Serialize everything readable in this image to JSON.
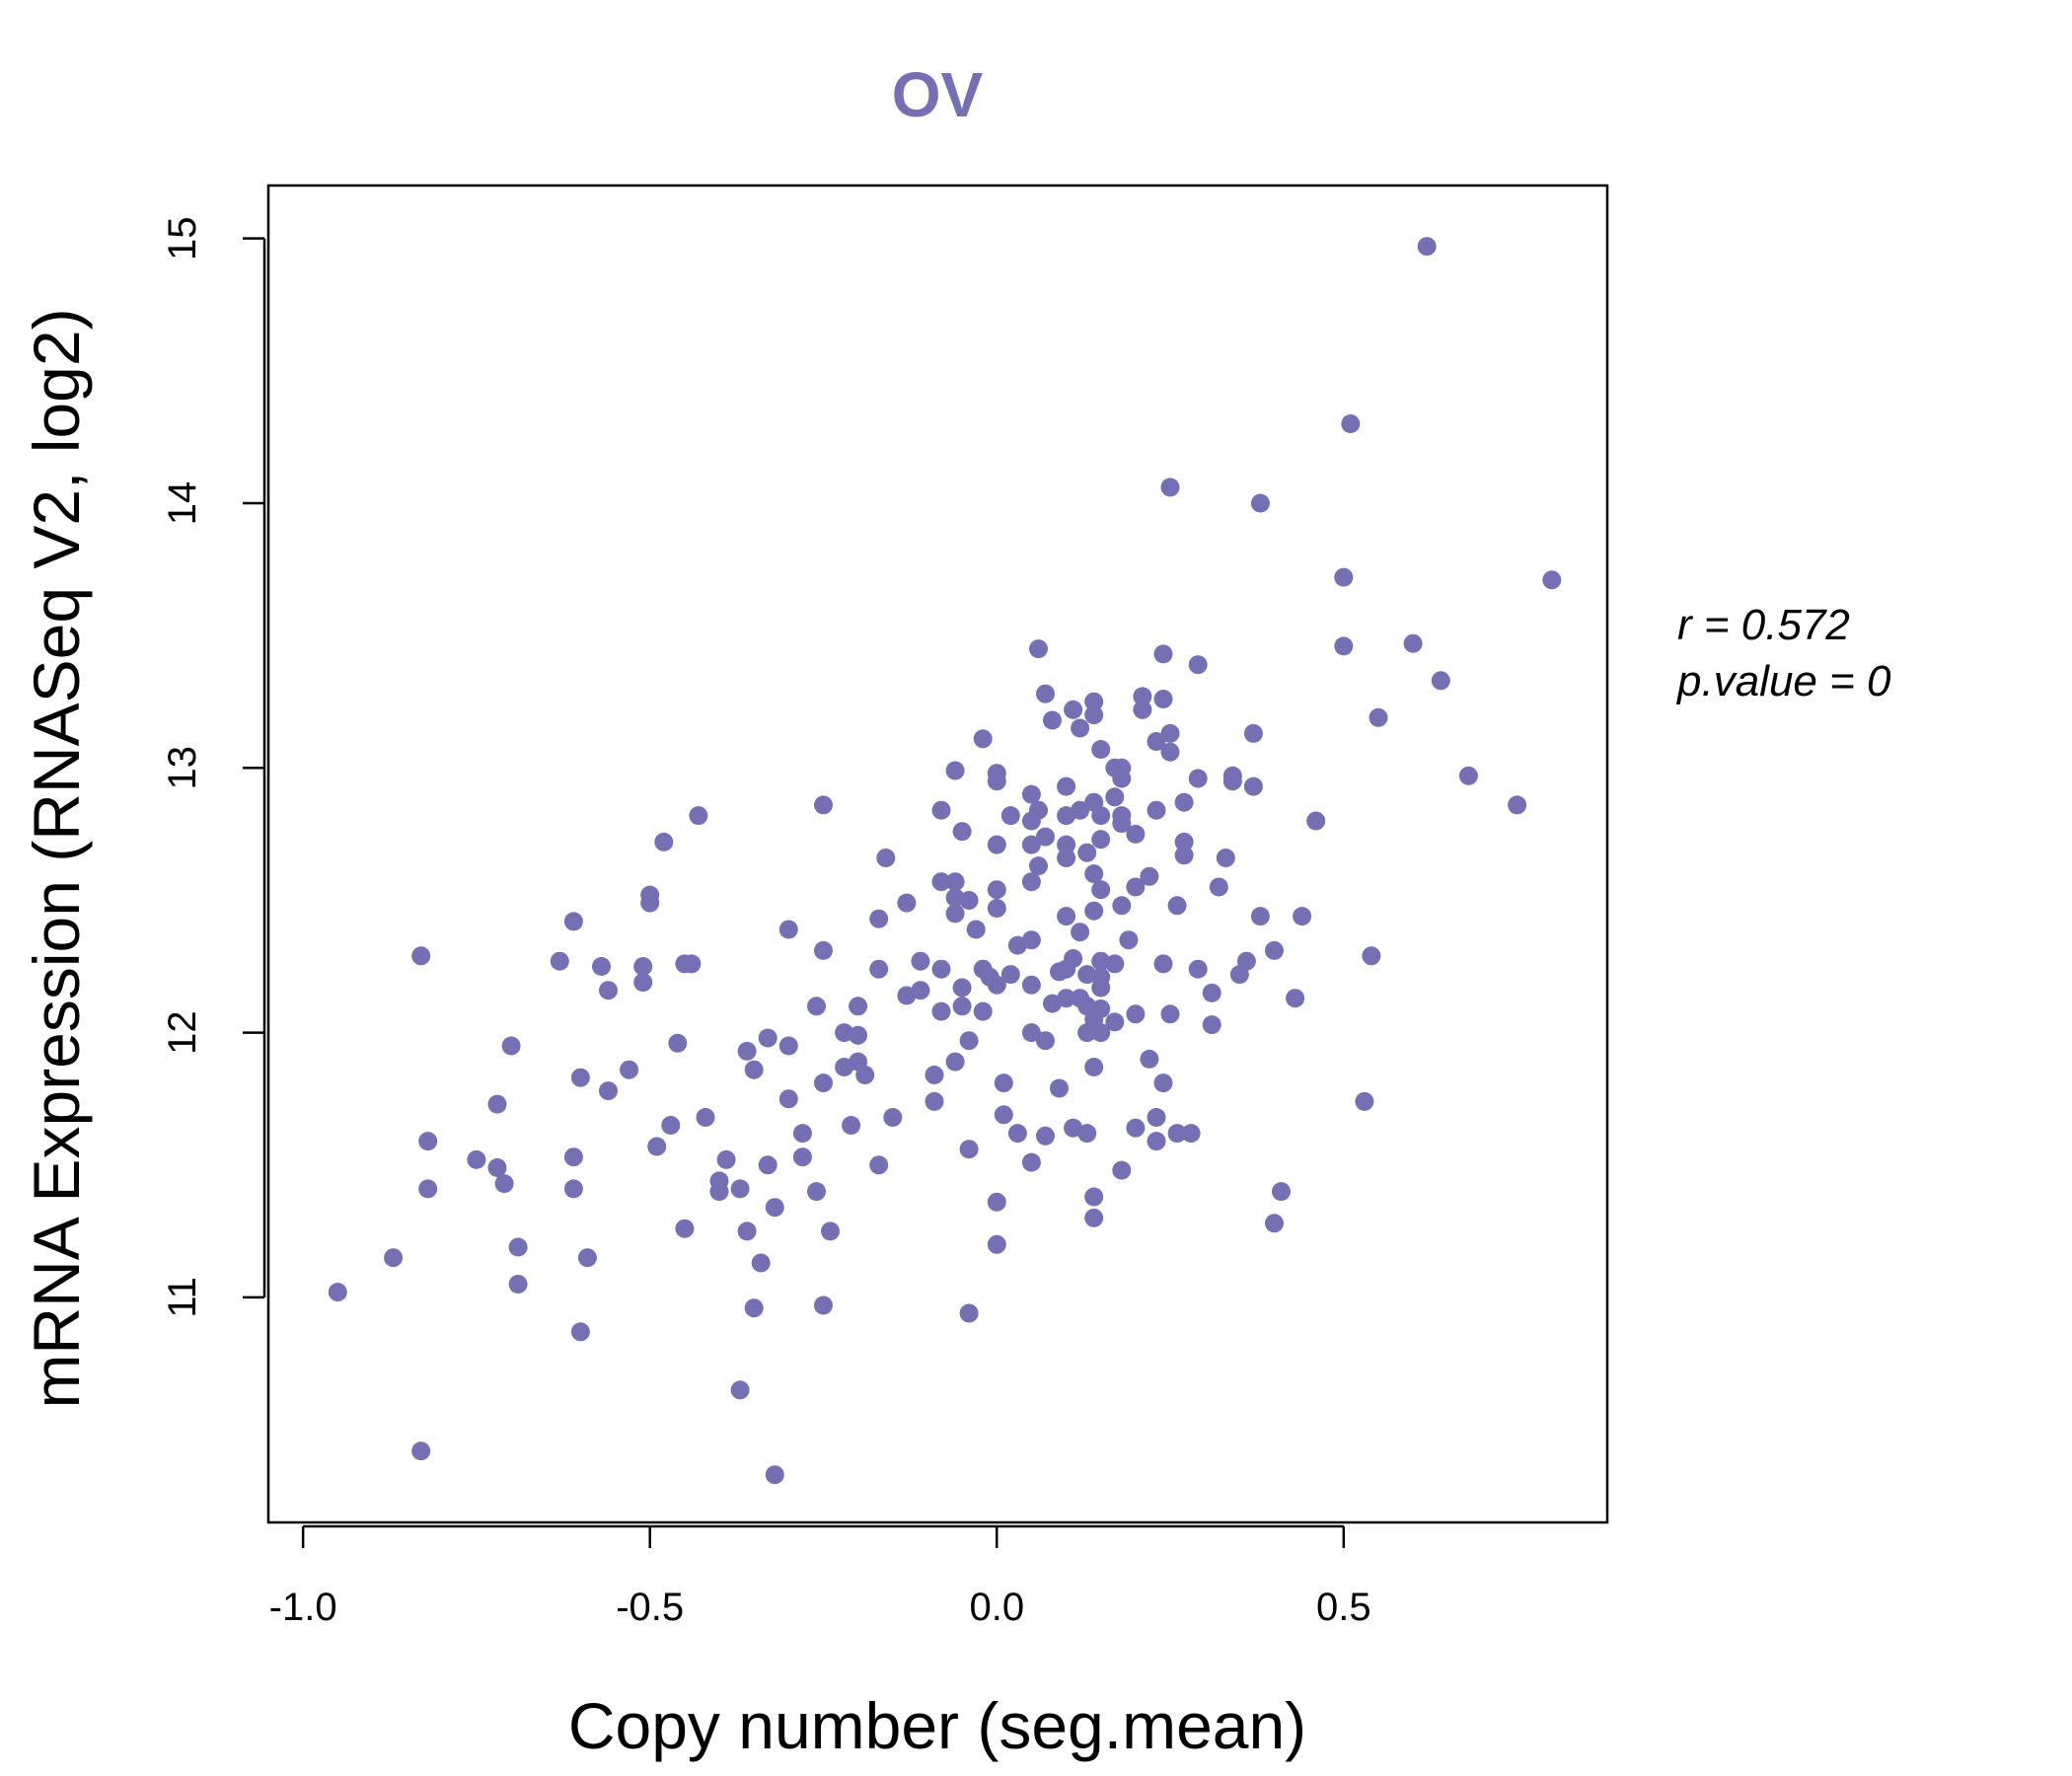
{
  "colors": {
    "accent": "#7570b3",
    "axis": "#000000"
  },
  "chart_data": {
    "type": "scatter",
    "title": "OV",
    "xlabel": "Copy number (seg.mean)",
    "ylabel": "mRNA Expression (RNASeq V2, log2)",
    "xlim": [
      -1.05,
      0.88
    ],
    "ylim": [
      10.15,
      15.2
    ],
    "xticks": [
      -1.0,
      -0.5,
      0.0,
      0.5
    ],
    "xtick_labels": [
      "-1.0",
      "-0.5",
      "0.0",
      "0.5"
    ],
    "yticks": [
      11,
      12,
      13,
      14,
      15
    ],
    "ytick_labels": [
      "11",
      "12",
      "13",
      "14",
      "15"
    ],
    "stats": {
      "r": "r = 0.572",
      "p": "p.value = 0"
    },
    "points": [
      [
        0.62,
        14.97
      ],
      [
        0.51,
        14.3
      ],
      [
        0.25,
        14.06
      ],
      [
        0.38,
        14.0
      ],
      [
        0.8,
        13.71
      ],
      [
        0.5,
        13.72
      ],
      [
        0.6,
        13.47
      ],
      [
        0.5,
        13.46
      ],
      [
        0.06,
        13.45
      ],
      [
        0.24,
        13.43
      ],
      [
        0.29,
        13.39
      ],
      [
        0.64,
        13.33
      ],
      [
        0.07,
        13.28
      ],
      [
        0.21,
        13.27
      ],
      [
        0.14,
        13.25
      ],
      [
        0.24,
        13.26
      ],
      [
        0.11,
        13.22
      ],
      [
        0.21,
        13.22
      ],
      [
        0.14,
        13.2
      ],
      [
        0.08,
        13.18
      ],
      [
        0.55,
        13.19
      ],
      [
        0.12,
        13.15
      ],
      [
        0.25,
        13.13
      ],
      [
        0.37,
        13.13
      ],
      [
        -0.02,
        13.11
      ],
      [
        0.23,
        13.1
      ],
      [
        0.15,
        13.07
      ],
      [
        0.25,
        13.06
      ],
      [
        0.17,
        13.0
      ],
      [
        0.18,
        13.0
      ],
      [
        -0.06,
        12.99
      ],
      [
        0.0,
        12.98
      ],
      [
        0.68,
        12.97
      ],
      [
        0.29,
        12.96
      ],
      [
        0.18,
        12.96
      ],
      [
        0.34,
        12.97
      ],
      [
        0.0,
        12.95
      ],
      [
        0.34,
        12.95
      ],
      [
        0.1,
        12.93
      ],
      [
        0.37,
        12.93
      ],
      [
        0.05,
        12.9
      ],
      [
        0.14,
        12.87
      ],
      [
        0.17,
        12.89
      ],
      [
        0.27,
        12.87
      ],
      [
        0.75,
        12.86
      ],
      [
        -0.25,
        12.86
      ],
      [
        -0.08,
        12.84
      ],
      [
        0.06,
        12.84
      ],
      [
        0.12,
        12.84
      ],
      [
        0.23,
        12.84
      ],
      [
        0.02,
        12.82
      ],
      [
        0.1,
        12.82
      ],
      [
        0.15,
        12.82
      ],
      [
        0.18,
        12.82
      ],
      [
        -0.43,
        12.82
      ],
      [
        0.46,
        12.8
      ],
      [
        0.05,
        12.8
      ],
      [
        0.18,
        12.79
      ],
      [
        -0.05,
        12.76
      ],
      [
        0.2,
        12.75
      ],
      [
        0.07,
        12.74
      ],
      [
        0.15,
        12.73
      ],
      [
        0.27,
        12.72
      ],
      [
        -0.48,
        12.72
      ],
      [
        0.0,
        12.71
      ],
      [
        0.05,
        12.71
      ],
      [
        0.1,
        12.71
      ],
      [
        0.13,
        12.68
      ],
      [
        0.27,
        12.67
      ],
      [
        0.33,
        12.66
      ],
      [
        -0.16,
        12.66
      ],
      [
        0.1,
        12.66
      ],
      [
        0.06,
        12.63
      ],
      [
        0.14,
        12.6
      ],
      [
        0.22,
        12.59
      ],
      [
        0.05,
        12.57
      ],
      [
        -0.08,
        12.57
      ],
      [
        -0.06,
        12.57
      ],
      [
        0.15,
        12.54
      ],
      [
        0.2,
        12.55
      ],
      [
        0.32,
        12.55
      ],
      [
        0.0,
        12.54
      ],
      [
        -0.5,
        12.52
      ],
      [
        -0.06,
        12.51
      ],
      [
        -0.04,
        12.5
      ],
      [
        -0.5,
        12.49
      ],
      [
        -0.13,
        12.49
      ],
      [
        0.18,
        12.48
      ],
      [
        0.26,
        12.48
      ],
      [
        0.0,
        12.47
      ],
      [
        0.14,
        12.46
      ],
      [
        -0.06,
        12.45
      ],
      [
        0.38,
        12.44
      ],
      [
        0.44,
        12.44
      ],
      [
        0.1,
        12.44
      ],
      [
        -0.17,
        12.43
      ],
      [
        -0.61,
        12.42
      ],
      [
        -0.03,
        12.39
      ],
      [
        -0.3,
        12.39
      ],
      [
        0.19,
        12.35
      ],
      [
        0.05,
        12.35
      ],
      [
        0.12,
        12.38
      ],
      [
        0.03,
        12.33
      ],
      [
        0.4,
        12.31
      ],
      [
        -0.25,
        12.31
      ],
      [
        0.54,
        12.29
      ],
      [
        0.11,
        12.28
      ],
      [
        -0.83,
        12.29
      ],
      [
        0.36,
        12.27
      ],
      [
        -0.11,
        12.27
      ],
      [
        0.15,
        12.27
      ],
      [
        0.17,
        12.26
      ],
      [
        -0.63,
        12.27
      ],
      [
        -0.45,
        12.26
      ],
      [
        -0.44,
        12.26
      ],
      [
        0.24,
        12.26
      ],
      [
        -0.57,
        12.25
      ],
      [
        -0.51,
        12.25
      ],
      [
        0.29,
        12.24
      ],
      [
        -0.17,
        12.24
      ],
      [
        0.1,
        12.24
      ],
      [
        -0.08,
        12.24
      ],
      [
        -0.02,
        12.24
      ],
      [
        0.09,
        12.23
      ],
      [
        0.02,
        12.22
      ],
      [
        0.13,
        12.22
      ],
      [
        0.35,
        12.22
      ],
      [
        -0.01,
        12.21
      ],
      [
        0.15,
        12.21
      ],
      [
        -0.51,
        12.19
      ],
      [
        0.05,
        12.18
      ],
      [
        0.0,
        12.18
      ],
      [
        0.15,
        12.17
      ],
      [
        -0.05,
        12.17
      ],
      [
        -0.56,
        12.16
      ],
      [
        -0.11,
        12.16
      ],
      [
        0.31,
        12.15
      ],
      [
        -0.13,
        12.14
      ],
      [
        0.1,
        12.13
      ],
      [
        0.12,
        12.13
      ],
      [
        0.43,
        12.13
      ],
      [
        0.08,
        12.11
      ],
      [
        -0.26,
        12.1
      ],
      [
        -0.2,
        12.1
      ],
      [
        -0.05,
        12.1
      ],
      [
        0.13,
        12.1
      ],
      [
        0.15,
        12.09
      ],
      [
        -0.08,
        12.08
      ],
      [
        -0.02,
        12.08
      ],
      [
        0.2,
        12.07
      ],
      [
        0.25,
        12.07
      ],
      [
        0.14,
        12.05
      ],
      [
        0.17,
        12.04
      ],
      [
        0.31,
        12.03
      ],
      [
        0.13,
        12.0
      ],
      [
        0.15,
        12.0
      ],
      [
        0.05,
        12.0
      ],
      [
        -0.22,
        12.0
      ],
      [
        -0.2,
        11.99
      ],
      [
        -0.33,
        11.98
      ],
      [
        0.07,
        11.97
      ],
      [
        -0.04,
        11.97
      ],
      [
        -0.46,
        11.96
      ],
      [
        -0.7,
        11.95
      ],
      [
        -0.3,
        11.95
      ],
      [
        -0.36,
        11.93
      ],
      [
        0.22,
        11.9
      ],
      [
        -0.06,
        11.89
      ],
      [
        -0.2,
        11.89
      ],
      [
        -0.22,
        11.87
      ],
      [
        0.14,
        11.87
      ],
      [
        -0.35,
        11.86
      ],
      [
        -0.53,
        11.86
      ],
      [
        -0.09,
        11.84
      ],
      [
        -0.19,
        11.84
      ],
      [
        -0.6,
        11.83
      ],
      [
        0.01,
        11.81
      ],
      [
        0.24,
        11.81
      ],
      [
        -0.25,
        11.81
      ],
      [
        0.09,
        11.79
      ],
      [
        -0.56,
        11.78
      ],
      [
        0.53,
        11.74
      ],
      [
        -0.3,
        11.75
      ],
      [
        -0.09,
        11.74
      ],
      [
        -0.72,
        11.73
      ],
      [
        0.01,
        11.69
      ],
      [
        -0.42,
        11.68
      ],
      [
        -0.15,
        11.68
      ],
      [
        0.23,
        11.68
      ],
      [
        -0.47,
        11.65
      ],
      [
        -0.21,
        11.65
      ],
      [
        0.11,
        11.64
      ],
      [
        0.2,
        11.64
      ],
      [
        0.26,
        11.62
      ],
      [
        0.28,
        11.62
      ],
      [
        0.03,
        11.62
      ],
      [
        0.13,
        11.62
      ],
      [
        0.07,
        11.61
      ],
      [
        -0.28,
        11.62
      ],
      [
        0.23,
        11.59
      ],
      [
        -0.82,
        11.59
      ],
      [
        -0.49,
        11.57
      ],
      [
        -0.04,
        11.56
      ],
      [
        -0.28,
        11.53
      ],
      [
        -0.61,
        11.53
      ],
      [
        -0.39,
        11.52
      ],
      [
        -0.75,
        11.52
      ],
      [
        0.05,
        11.51
      ],
      [
        -0.17,
        11.5
      ],
      [
        -0.33,
        11.5
      ],
      [
        -0.72,
        11.49
      ],
      [
        0.18,
        11.48
      ],
      [
        -0.4,
        11.44
      ],
      [
        -0.71,
        11.43
      ],
      [
        -0.37,
        11.41
      ],
      [
        -0.61,
        11.41
      ],
      [
        -0.82,
        11.41
      ],
      [
        -0.4,
        11.4
      ],
      [
        -0.26,
        11.4
      ],
      [
        0.41,
        11.4
      ],
      [
        0.14,
        11.38
      ],
      [
        0.0,
        11.36
      ],
      [
        -0.32,
        11.34
      ],
      [
        0.14,
        11.3
      ],
      [
        0.4,
        11.28
      ],
      [
        -0.45,
        11.26
      ],
      [
        -0.36,
        11.25
      ],
      [
        -0.24,
        11.25
      ],
      [
        0.0,
        11.2
      ],
      [
        -0.69,
        11.19
      ],
      [
        -0.87,
        11.15
      ],
      [
        -0.59,
        11.15
      ],
      [
        -0.34,
        11.13
      ],
      [
        -0.69,
        11.05
      ],
      [
        -0.95,
        11.02
      ],
      [
        -0.25,
        10.97
      ],
      [
        -0.35,
        10.96
      ],
      [
        -0.04,
        10.94
      ],
      [
        -0.6,
        10.87
      ],
      [
        -0.37,
        10.65
      ],
      [
        -0.83,
        10.42
      ],
      [
        -0.32,
        10.33
      ]
    ]
  }
}
